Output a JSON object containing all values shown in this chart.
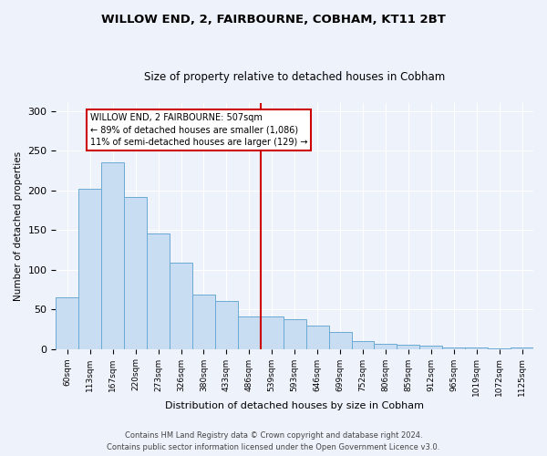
{
  "title": "WILLOW END, 2, FAIRBOURNE, COBHAM, KT11 2BT",
  "subtitle": "Size of property relative to detached houses in Cobham",
  "xlabel": "Distribution of detached houses by size in Cobham",
  "ylabel": "Number of detached properties",
  "categories": [
    "60sqm",
    "113sqm",
    "167sqm",
    "220sqm",
    "273sqm",
    "326sqm",
    "380sqm",
    "433sqm",
    "486sqm",
    "539sqm",
    "593sqm",
    "646sqm",
    "699sqm",
    "752sqm",
    "806sqm",
    "859sqm",
    "912sqm",
    "965sqm",
    "1019sqm",
    "1072sqm",
    "1125sqm"
  ],
  "bar_heights": [
    65,
    202,
    235,
    191,
    145,
    109,
    68,
    61,
    41,
    41,
    38,
    30,
    21,
    10,
    6,
    5,
    4,
    2,
    2,
    1,
    2
  ],
  "bar_color": "#c9ddf2",
  "bar_edge_color": "#6aaad4",
  "property_line_x": 8.5,
  "annotation_text": "WILLOW END, 2 FAIRBOURNE: 507sqm\n← 89% of detached houses are smaller (1,086)\n11% of semi-detached houses are larger (129) →",
  "annotation_box_color": "#ffffff",
  "annotation_box_edge_color": "#cc0000",
  "vline_color": "#cc0000",
  "footer_line1": "Contains HM Land Registry data © Crown copyright and database right 2024.",
  "footer_line2": "Contains public sector information licensed under the Open Government Licence v3.0.",
  "background_color": "#eef2fb",
  "ylim": [
    0,
    310
  ],
  "yticks": [
    0,
    50,
    100,
    150,
    200,
    250,
    300
  ]
}
